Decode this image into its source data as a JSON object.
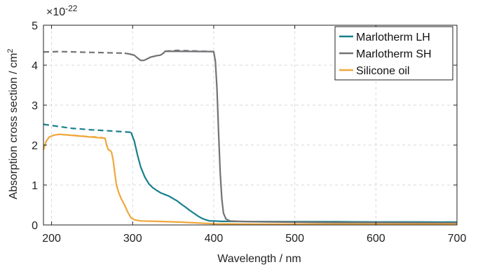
{
  "chart_data": {
    "type": "line",
    "xlabel": "Wavelength / nm",
    "ylabel": "Absorption cross section / cm",
    "ylabel_superscript": "2",
    "multiplier": "×10",
    "multiplier_exponent": "-22",
    "xlim": [
      190,
      700
    ],
    "ylim": [
      0,
      5
    ],
    "xticks": [
      200,
      300,
      400,
      500,
      600,
      700
    ],
    "yticks": [
      0,
      1,
      2,
      3,
      4,
      5
    ],
    "grid": true,
    "legend_position": "top-right",
    "series": [
      {
        "name": "Marlotherm LH",
        "color": "#17808c",
        "dashed_x": [
          190,
          200,
          225,
          250,
          275,
          298
        ],
        "dashed_y": [
          2.52,
          2.49,
          2.42,
          2.38,
          2.35,
          2.32
        ],
        "x": [
          298,
          302,
          306,
          310,
          315,
          320,
          325,
          330,
          335,
          340,
          345,
          350,
          355,
          360,
          365,
          370,
          375,
          380,
          385,
          390,
          395,
          400,
          410,
          420,
          450,
          500,
          550,
          600,
          650,
          700
        ],
        "y": [
          2.32,
          2.1,
          1.75,
          1.45,
          1.2,
          1.03,
          0.93,
          0.86,
          0.8,
          0.76,
          0.72,
          0.66,
          0.6,
          0.52,
          0.45,
          0.37,
          0.3,
          0.23,
          0.17,
          0.13,
          0.1,
          0.1,
          0.09,
          0.09,
          0.085,
          0.08,
          0.08,
          0.075,
          0.075,
          0.07
        ]
      },
      {
        "name": "Marlotherm SH",
        "color": "#737377",
        "dashed_x": [
          190,
          210,
          230,
          250,
          270,
          290
        ],
        "dashed_y": [
          4.33,
          4.34,
          4.33,
          4.32,
          4.31,
          4.3
        ],
        "dashed2_x": [
          340,
          355,
          370,
          385,
          400
        ],
        "dashed2_y": [
          4.35,
          4.37,
          4.36,
          4.35,
          4.34
        ],
        "x": [
          290,
          296,
          302,
          306,
          310,
          314,
          318,
          322,
          326,
          330,
          334,
          338,
          340,
          400,
          402,
          404,
          406,
          408,
          410,
          412,
          415,
          420,
          430,
          450,
          500,
          550,
          600,
          650,
          700
        ],
        "y": [
          4.3,
          4.28,
          4.25,
          4.18,
          4.12,
          4.12,
          4.16,
          4.2,
          4.22,
          4.24,
          4.25,
          4.3,
          4.35,
          4.34,
          4.1,
          3.4,
          2.3,
          1.3,
          0.65,
          0.3,
          0.15,
          0.1,
          0.09,
          0.08,
          0.07,
          0.06,
          0.06,
          0.055,
          0.05
        ]
      },
      {
        "name": "Silicone oil",
        "color": "#f0a73c",
        "dashed_x": [
          215,
          230,
          245,
          258,
          266
        ],
        "dashed_y": [
          2.26,
          2.24,
          2.21,
          2.2,
          2.17
        ],
        "x": [
          190,
          193,
          197,
          203,
          210,
          215,
          266,
          268,
          270,
          272,
          274,
          276,
          278,
          280,
          283,
          286,
          290,
          294,
          298,
          302,
          310,
          330,
          360,
          400,
          450,
          500,
          600,
          700
        ],
        "y": [
          1.88,
          2.08,
          2.2,
          2.25,
          2.27,
          2.26,
          2.17,
          2.0,
          1.88,
          1.87,
          1.82,
          1.62,
          1.3,
          1.0,
          0.8,
          0.65,
          0.5,
          0.32,
          0.18,
          0.13,
          0.1,
          0.09,
          0.07,
          0.03,
          0.02,
          0.02,
          0.02,
          0.02
        ]
      }
    ]
  }
}
